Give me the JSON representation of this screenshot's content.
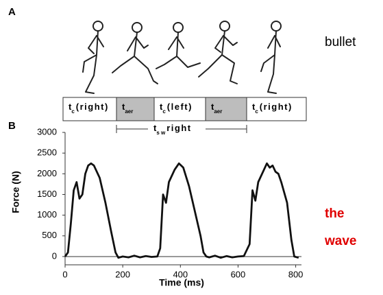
{
  "panel_labels": [
    "A",
    "B"
  ],
  "side_notes": {
    "top": "bullet",
    "bottom": [
      "the",
      "wave"
    ],
    "bottom_color": "#e00000"
  },
  "phases": [
    {
      "main": "t",
      "sub": "c",
      "suffix": "(right)",
      "fill": "#ffffff"
    },
    {
      "main": "t",
      "sub": "aer",
      "suffix": "",
      "fill": "#bdbdbd"
    },
    {
      "main": "t",
      "sub": "c",
      "suffix": "(left)",
      "fill": "#ffffff"
    },
    {
      "main": "t",
      "sub": "aer",
      "suffix": "",
      "fill": "#bdbdbd"
    },
    {
      "main": "t",
      "sub": "c",
      "suffix": "(right)",
      "fill": "#ffffff"
    }
  ],
  "swing": {
    "main": "t",
    "sub": "s w",
    "suffix": "right"
  },
  "chart_data": {
    "type": "line",
    "xlabel": "Time  (ms)",
    "ylabel": "Force   (N)",
    "color": "#111111",
    "x": [
      0,
      10,
      20,
      30,
      40,
      50,
      60,
      70,
      80,
      90,
      100,
      120,
      140,
      160,
      175,
      185,
      200,
      220,
      240,
      260,
      280,
      300,
      320,
      330,
      340,
      350,
      360,
      380,
      395,
      410,
      430,
      450,
      470,
      480,
      490,
      500,
      520,
      540,
      560,
      580,
      600,
      620,
      640,
      650,
      660,
      670,
      690,
      700,
      710,
      720,
      730,
      740,
      750,
      770,
      785,
      795,
      810
    ],
    "values": [
      0,
      100,
      800,
      1600,
      1800,
      1400,
      1500,
      2000,
      2200,
      2250,
      2200,
      1900,
      1300,
      600,
      100,
      -30,
      0,
      -20,
      20,
      -20,
      10,
      -10,
      0,
      200,
      1500,
      1300,
      1800,
      2100,
      2250,
      2150,
      1700,
      1100,
      500,
      100,
      0,
      -20,
      20,
      -30,
      10,
      -20,
      0,
      10,
      300,
      1600,
      1350,
      1800,
      2100,
      2250,
      2150,
      2200,
      2050,
      2000,
      1800,
      1300,
      400,
      0,
      -30
    ],
    "xlim": [
      0,
      820
    ],
    "ylim": [
      -200,
      3000
    ],
    "xticks": [
      0,
      200,
      400,
      600,
      800
    ],
    "yticks": [
      0,
      500,
      1000,
      1500,
      2000,
      2500,
      3000
    ]
  }
}
